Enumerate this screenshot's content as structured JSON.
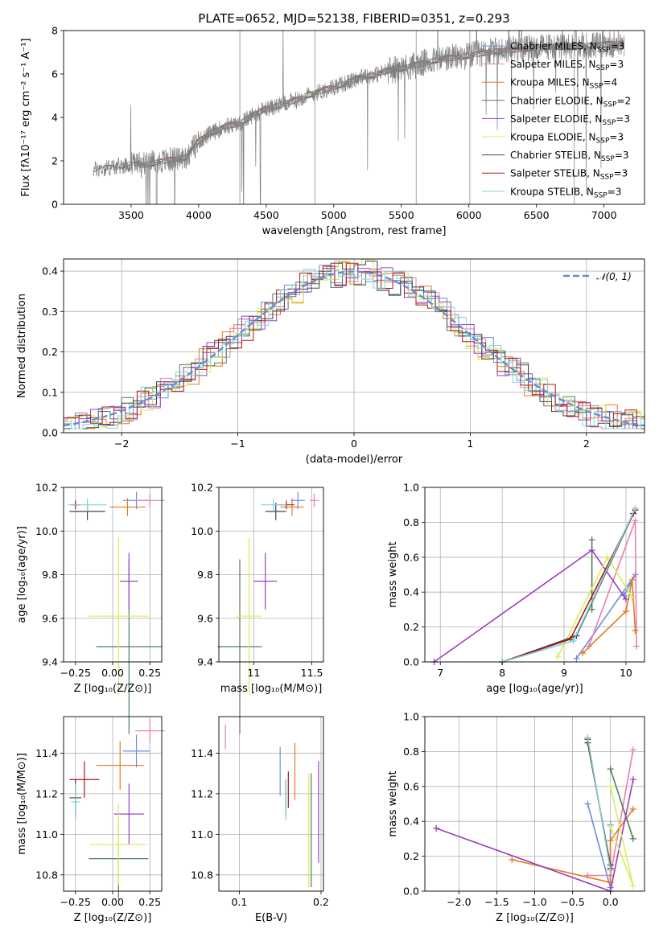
{
  "figure": {
    "title": "PLATE=0652, MJD=52138, FIBERID=0351, z=0.293"
  },
  "colors": {
    "Chabrier MILES": "#6a8fdb",
    "Salpeter MILES": "#e87fb0",
    "Kroupa MILES": "#e07b25",
    "Chabrier ELODIE": "#4f7f5c",
    "Salpeter ELODIE": "#9b3fc0",
    "Kroupa ELODIE": "#d9ec5a",
    "Chabrier STELIB": "#444444",
    "Salpeter STELIB": "#b01818",
    "Kroupa STELIB": "#80d4d8",
    "data": "#808080",
    "normal": "#5f8fd6"
  },
  "chart_data": [
    {
      "id": "spectrum",
      "type": "line",
      "title": "PLATE=0652, MJD=52138, FIBERID=0351, z=0.293",
      "xlabel": "wavelength [Angstrom, rest frame]",
      "ylabel": "Flux [fλ10⁻¹⁷ erg cm⁻² s⁻¹ A⁻¹]",
      "xlim": [
        3000,
        7300
      ],
      "ylim": [
        0,
        8
      ],
      "xticks": [
        3500,
        4000,
        4500,
        5000,
        5500,
        6000,
        6500,
        7000
      ],
      "yticks": [
        0,
        2,
        4,
        6,
        8
      ],
      "legend_position": "right",
      "legend": [
        "Chabrier MILES, N_SSP=3",
        "Salpeter MILES, N_SSP=3",
        "Kroupa MILES, N_SSP=4",
        "Chabrier ELODIE, N_SSP=2",
        "Salpeter ELODIE, N_SSP=3",
        "Kroupa ELODIE, N_SSP=3",
        "Chabrier STELIB, N_SSP=3",
        "Salpeter STELIB, N_SSP=3",
        "Kroupa STELIB, N_SSP=3"
      ],
      "continuum": {
        "x": [
          3220,
          3300,
          3400,
          3500,
          3600,
          3700,
          3800,
          3900,
          4000,
          4100,
          4200,
          4300,
          4400,
          4500,
          4600,
          4700,
          4800,
          4900,
          5000,
          5100,
          5200,
          5300,
          5400,
          5500,
          5600,
          5700,
          5800,
          5900,
          6000,
          6100,
          6200,
          6300,
          6400,
          6500,
          6600,
          6700,
          6800,
          6900,
          7000,
          7100,
          7150
        ],
        "y": [
          1.6,
          1.65,
          1.75,
          1.85,
          1.8,
          1.95,
          2.05,
          2.15,
          2.9,
          3.3,
          3.6,
          3.7,
          4.1,
          4.4,
          4.55,
          4.75,
          5.0,
          5.2,
          5.4,
          5.6,
          5.85,
          5.95,
          6.15,
          6.25,
          6.4,
          6.55,
          6.7,
          6.75,
          6.85,
          6.95,
          7.05,
          7.1,
          7.15,
          7.2,
          7.25,
          7.25,
          7.3,
          7.3,
          7.35,
          7.4,
          7.4
        ]
      }
    },
    {
      "id": "residuals",
      "type": "line",
      "xlabel": "(data-model)/error",
      "ylabel": "Normed distribution",
      "xlim": [
        -2.5,
        2.5
      ],
      "ylim": [
        0,
        0.43
      ],
      "xticks": [
        -2,
        -1,
        0,
        1,
        2
      ],
      "yticks": [
        0.0,
        0.1,
        0.2,
        0.3,
        0.4
      ],
      "grid": true,
      "legend_position": "top-right",
      "legend": [
        "𝒩(0, 1)"
      ],
      "bin_width": 0.1
    },
    {
      "id": "age_vs_Z",
      "type": "scatter",
      "xlabel": "Z [log₁₀(Z/Z⊙)]",
      "ylabel": "age  [log₁₀(age/yr)]",
      "xlim": [
        -0.33,
        0.33
      ],
      "ylim": [
        9.4,
        10.2
      ],
      "xticks": [
        -0.25,
        0.0,
        0.25
      ],
      "xticklabels": [
        "−0.25",
        "0.00",
        "0.25"
      ],
      "yticks": [
        9.4,
        9.6,
        9.8,
        10.0,
        10.2
      ],
      "grid": true,
      "points": [
        {
          "series": "Chabrier MILES",
          "x": 0.16,
          "xerr": 0.09,
          "y": 10.14,
          "yerr": 0.04
        },
        {
          "series": "Salpeter MILES",
          "x": 0.25,
          "xerr": 0.1,
          "y": 10.14,
          "yerr": 0.03
        },
        {
          "series": "Kroupa MILES",
          "x": 0.1,
          "xerr": 0.12,
          "y": 10.11,
          "yerr": 0.04
        },
        {
          "series": "Chabrier ELODIE",
          "x": 0.11,
          "xerr": 0.22,
          "y": 9.47,
          "yerr": 0.4
        },
        {
          "series": "Salpeter ELODIE",
          "x": 0.11,
          "xerr": 0.06,
          "y": 9.77,
          "yerr": 0.13
        },
        {
          "series": "Kroupa ELODIE",
          "x": 0.04,
          "xerr": 0.2,
          "y": 9.61,
          "yerr": 0.36
        },
        {
          "series": "Chabrier STELIB",
          "x": -0.17,
          "xerr": 0.12,
          "y": 10.09,
          "yerr": 0.04
        },
        {
          "series": "Salpeter STELIB",
          "x": -0.25,
          "xerr": 0.03,
          "y": 10.12,
          "yerr": 0.02
        },
        {
          "series": "Kroupa STELIB",
          "x": -0.17,
          "xerr": 0.13,
          "y": 10.12,
          "yerr": 0.03
        }
      ]
    },
    {
      "id": "age_vs_mass",
      "type": "scatter",
      "xlabel": "mass [log₁₀(M/M⊙)]",
      "xlim": [
        10.7,
        11.6
      ],
      "ylim": [
        9.4,
        10.2
      ],
      "xticks": [
        11.0,
        11.5
      ],
      "yticks": [
        9.4,
        9.6,
        9.8,
        10.0,
        10.2
      ],
      "grid": true,
      "points": [
        {
          "series": "Chabrier MILES",
          "x": 11.38,
          "xerr": 0.06,
          "y": 10.14,
          "yerr": 0.04
        },
        {
          "series": "Salpeter MILES",
          "x": 11.52,
          "xerr": 0.04,
          "y": 10.14,
          "yerr": 0.03
        },
        {
          "series": "Kroupa MILES",
          "x": 11.33,
          "xerr": 0.1,
          "y": 10.11,
          "yerr": 0.04
        },
        {
          "series": "Chabrier ELODIE",
          "x": 10.88,
          "xerr": 0.19,
          "y": 9.47,
          "yerr": 0.4
        },
        {
          "series": "Salpeter ELODIE",
          "x": 11.1,
          "xerr": 0.1,
          "y": 9.77,
          "yerr": 0.13
        },
        {
          "series": "Kroupa ELODIE",
          "x": 10.96,
          "xerr": 0.11,
          "y": 9.61,
          "yerr": 0.36
        },
        {
          "series": "Chabrier STELIB",
          "x": 11.19,
          "xerr": 0.09,
          "y": 10.09,
          "yerr": 0.04
        },
        {
          "series": "Salpeter STELIB",
          "x": 11.28,
          "xerr": 0.07,
          "y": 10.12,
          "yerr": 0.02
        },
        {
          "series": "Kroupa STELIB",
          "x": 11.17,
          "xerr": 0.11,
          "y": 10.12,
          "yerr": 0.03
        }
      ]
    },
    {
      "id": "weight_vs_age",
      "type": "line",
      "xlabel": "age  [log₁₀(age/yr)]",
      "ylabel": "mass weight",
      "xlim": [
        6.75,
        10.3
      ],
      "ylim": [
        0,
        1.0
      ],
      "xticks": [
        7,
        8,
        9,
        10
      ],
      "yticks": [
        0.0,
        0.2,
        0.4,
        0.6,
        0.8,
        1.0
      ],
      "grid": true,
      "series": [
        {
          "name": "Chabrier MILES",
          "x": [
            9.2,
            10.15,
            9.97
          ],
          "y": [
            0.02,
            0.5,
            0.38
          ]
        },
        {
          "name": "Salpeter MILES",
          "x": [
            9.4,
            10.15,
            10.17
          ],
          "y": [
            0.09,
            0.81,
            0.09
          ]
        },
        {
          "name": "Kroupa MILES",
          "x": [
            9.3,
            10.0,
            10.1,
            10.15
          ],
          "y": [
            0.05,
            0.29,
            0.47,
            0.18
          ]
        },
        {
          "name": "Chabrier ELODIE",
          "x": [
            9.45,
            9.45
          ],
          "y": [
            0.3,
            0.7
          ]
        },
        {
          "name": "Salpeter ELODIE",
          "x": [
            6.9,
            9.45,
            10.0
          ],
          "y": [
            0.0,
            0.64,
            0.36
          ]
        },
        {
          "name": "Kroupa ELODIE",
          "x": [
            8.9,
            9.7,
            10.1
          ],
          "y": [
            0.03,
            0.6,
            0.37
          ]
        },
        {
          "name": "Chabrier STELIB",
          "x": [
            8.0,
            9.2,
            10.12
          ],
          "y": [
            0.0,
            0.15,
            0.85
          ]
        },
        {
          "name": "Salpeter STELIB",
          "x": [
            8.0,
            9.1,
            10.15
          ],
          "y": [
            0.0,
            0.13,
            0.87
          ]
        },
        {
          "name": "Kroupa STELIB",
          "x": [
            8.0,
            9.15,
            10.15
          ],
          "y": [
            0.0,
            0.12,
            0.88
          ]
        }
      ]
    },
    {
      "id": "mass_vs_Z",
      "type": "scatter",
      "xlabel": "Z [log₁₀(Z/Z⊙)]",
      "ylabel": "mass [log₁₀(M/M⊙)]",
      "xlim": [
        -0.33,
        0.33
      ],
      "ylim": [
        10.72,
        11.58
      ],
      "xticks": [
        -0.25,
        0.0,
        0.25
      ],
      "xticklabels": [
        "−0.25",
        "0.00",
        "0.25"
      ],
      "yticks": [
        10.8,
        11.0,
        11.2,
        11.4
      ],
      "grid": true,
      "points": [
        {
          "series": "Chabrier MILES",
          "x": 0.16,
          "xerr": 0.09,
          "y": 11.41,
          "yerr": 0.08
        },
        {
          "series": "Salpeter MILES",
          "x": 0.25,
          "xerr": 0.1,
          "y": 11.51,
          "yerr": 0.06
        },
        {
          "series": "Kroupa MILES",
          "x": 0.05,
          "xerr": 0.16,
          "y": 11.34,
          "yerr": 0.12
        },
        {
          "series": "Chabrier ELODIE",
          "x": 0.04,
          "xerr": 0.2,
          "y": 10.88,
          "yerr": 0.2
        },
        {
          "series": "Salpeter ELODIE",
          "x": 0.11,
          "xerr": 0.1,
          "y": 11.1,
          "yerr": 0.15
        },
        {
          "series": "Kroupa ELODIE",
          "x": 0.04,
          "xerr": 0.19,
          "y": 10.95,
          "yerr": 0.2
        },
        {
          "series": "Chabrier STELIB",
          "x": -0.25,
          "xerr": 0.04,
          "y": 11.18,
          "yerr": 0.09
        },
        {
          "series": "Salpeter STELIB",
          "x": -0.19,
          "xerr": 0.1,
          "y": 11.27,
          "yerr": 0.09
        },
        {
          "series": "Kroupa STELIB",
          "x": -0.25,
          "xerr": 0.03,
          "y": 11.16,
          "yerr": 0.09
        }
      ]
    },
    {
      "id": "mass_vs_ebv",
      "type": "scatter",
      "xlabel": "E(B-V)",
      "xlim": [
        0.075,
        0.203
      ],
      "ylim": [
        10.72,
        11.58
      ],
      "xticks": [
        0.1,
        0.2
      ],
      "yticks": [
        10.8,
        11.0,
        11.2,
        11.4
      ],
      "grid": true,
      "points": [
        {
          "series": "Chabrier MILES",
          "x": 0.15,
          "y": 11.31,
          "yerr": 0.12
        },
        {
          "series": "Salpeter MILES",
          "x": 0.083,
          "y": 11.48,
          "yerr": 0.06
        },
        {
          "series": "Kroupa MILES",
          "x": 0.168,
          "y": 11.31,
          "yerr": 0.14
        },
        {
          "series": "Chabrier ELODIE",
          "x": 0.188,
          "y": 11.02,
          "yerr": 0.28
        },
        {
          "series": "Salpeter ELODIE",
          "x": 0.197,
          "y": 11.11,
          "yerr": 0.25
        },
        {
          "series": "Kroupa ELODIE",
          "x": 0.185,
          "y": 11.02,
          "yerr": 0.28
        },
        {
          "series": "Chabrier STELIB",
          "x": 0.157,
          "y": 11.18,
          "yerr": 0.09
        },
        {
          "series": "Salpeter STELIB",
          "x": 0.16,
          "y": 11.22,
          "yerr": 0.09
        },
        {
          "series": "Kroupa STELIB",
          "x": 0.157,
          "y": 11.17,
          "yerr": 0.1
        }
      ]
    },
    {
      "id": "weight_vs_Z",
      "type": "line",
      "xlabel": "Z [log₁₀(Z/Z⊙)]",
      "ylabel": "mass weight",
      "xlim": [
        -2.45,
        0.45
      ],
      "ylim": [
        0,
        1.0
      ],
      "xticks": [
        -2.0,
        -1.5,
        -1.0,
        -0.5,
        0.0
      ],
      "xticklabels": [
        "−2.0",
        "−1.5",
        "−1.0",
        "−0.5",
        "0.0"
      ],
      "yticks": [
        0.0,
        0.2,
        0.4,
        0.6,
        0.8,
        1.0
      ],
      "grid": true,
      "series": [
        {
          "name": "Chabrier MILES",
          "x": [
            -0.3,
            0.0,
            0.0
          ],
          "y": [
            0.5,
            0.02,
            0.38
          ]
        },
        {
          "name": "Salpeter MILES",
          "x": [
            -0.3,
            0.0,
            0.3
          ],
          "y": [
            0.09,
            0.09,
            0.81
          ]
        },
        {
          "name": "Kroupa MILES",
          "x": [
            -1.3,
            0.0,
            0.0,
            0.3
          ],
          "y": [
            0.18,
            0.05,
            0.29,
            0.47
          ]
        },
        {
          "name": "Chabrier ELODIE",
          "x": [
            0.0,
            0.3
          ],
          "y": [
            0.7,
            0.3
          ]
        },
        {
          "name": "Salpeter ELODIE",
          "x": [
            -2.3,
            0.0,
            0.3
          ],
          "y": [
            0.36,
            0.0,
            0.64
          ]
        },
        {
          "name": "Kroupa ELODIE",
          "x": [
            0.0,
            0.3,
            0.0
          ],
          "y": [
            0.6,
            0.03,
            0.37
          ]
        },
        {
          "name": "Chabrier STELIB",
          "x": [
            -0.3,
            0.0
          ],
          "y": [
            0.85,
            0.15
          ]
        },
        {
          "name": "Salpeter STELIB",
          "x": [
            -0.3,
            0.0
          ],
          "y": [
            0.87,
            0.13
          ]
        },
        {
          "name": "Kroupa STELIB",
          "x": [
            -0.3,
            0.0
          ],
          "y": [
            0.88,
            0.12
          ]
        }
      ]
    }
  ]
}
